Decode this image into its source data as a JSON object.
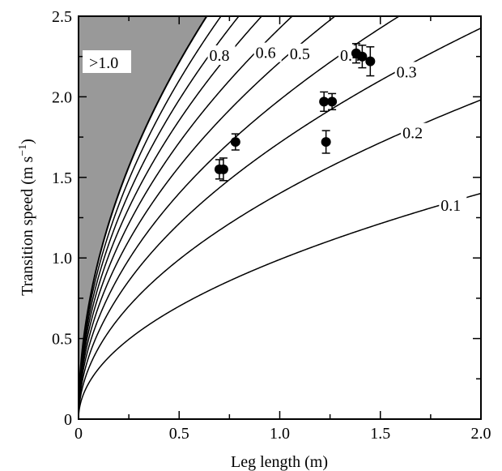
{
  "chart_data": {
    "type": "line",
    "xlabel": "Leg length  (m)",
    "ylabel_main": "Transition speed (m s",
    "ylabel_sup": "−1",
    "ylabel_close": ")",
    "xlim": [
      0,
      2.0
    ],
    "ylim": [
      0,
      2.5
    ],
    "x_ticks": [
      0,
      0.5,
      1.0,
      1.5,
      2.0
    ],
    "x_tick_labels": [
      "0",
      "0.5",
      "1.0",
      "1.5",
      "2.0"
    ],
    "y_ticks": [
      0,
      0.5,
      1.0,
      1.5,
      2.0,
      2.5
    ],
    "y_tick_labels": [
      "0",
      "0.5",
      "1.0",
      "1.5",
      "2.0",
      "2.5"
    ],
    "grid": false,
    "froude_curves": [
      {
        "froude": 0.1,
        "label": "0.1",
        "label_x": 1.8
      },
      {
        "froude": 0.2,
        "label": "0.2",
        "label_x": 1.61
      },
      {
        "froude": 0.3,
        "label": "0.3",
        "label_x": 1.58
      },
      {
        "froude": 0.4,
        "label": "0.4",
        "label_x": 1.3
      },
      {
        "froude": 0.5,
        "label": "0.5",
        "label_x": 1.05
      },
      {
        "froude": 0.6,
        "label": "0.6",
        "label_x": 0.88
      },
      {
        "froude": 0.7,
        "label": "",
        "label_x": null
      },
      {
        "froude": 0.8,
        "label": "0.8",
        "label_x": 0.65
      },
      {
        "froude": 0.9,
        "label": "",
        "label_x": null
      },
      {
        "froude": 1.0,
        "label": "",
        "label_x": null
      }
    ],
    "shaded_region": {
      "label": ">1.0",
      "color": "#999999"
    },
    "points": [
      {
        "x": 0.7,
        "y": 1.55,
        "err": 0.06
      },
      {
        "x": 0.72,
        "y": 1.55,
        "err": 0.07
      },
      {
        "x": 0.78,
        "y": 1.72,
        "err": 0.05
      },
      {
        "x": 1.22,
        "y": 1.97,
        "err": 0.06
      },
      {
        "x": 1.26,
        "y": 1.97,
        "err": 0.05
      },
      {
        "x": 1.23,
        "y": 1.72,
        "err": 0.07
      },
      {
        "x": 1.38,
        "y": 2.27,
        "err": 0.06
      },
      {
        "x": 1.41,
        "y": 2.25,
        "err": 0.07
      },
      {
        "x": 1.45,
        "y": 2.22,
        "err": 0.09
      }
    ]
  }
}
